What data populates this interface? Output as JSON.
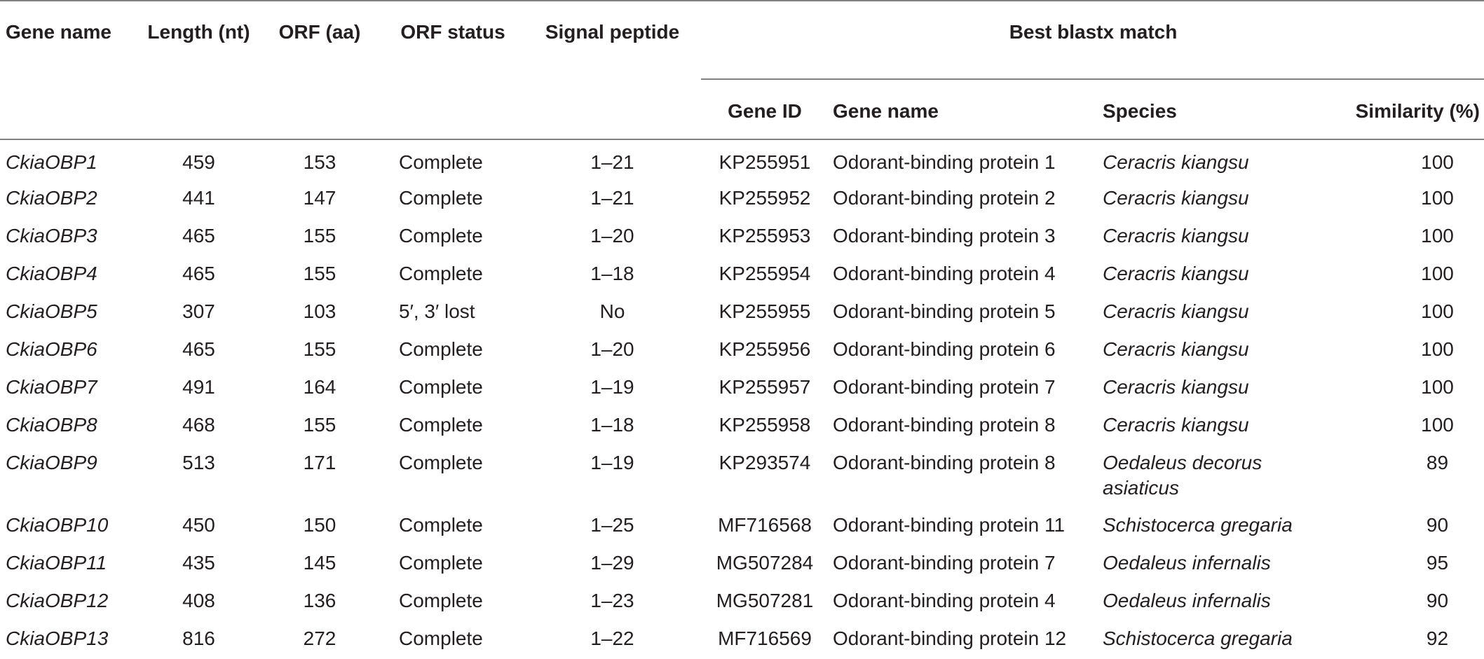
{
  "headers": {
    "gene_name": "Gene name",
    "length": "Length (nt)",
    "orf": "ORF (aa)",
    "orf_status": "ORF status",
    "signal_peptide": "Signal peptide",
    "best_blastx": "Best blastx match",
    "gene_id": "Gene ID",
    "match_gene_name": "Gene name",
    "species": "Species",
    "similarity": "Similarity (%)"
  },
  "rows": [
    {
      "gene": "CkiaOBP1",
      "length": "459",
      "orf": "153",
      "status": "Complete",
      "signal": "1–21",
      "id": "KP255951",
      "match": "Odorant-binding protein 1",
      "species": "Ceracris kiangsu",
      "similarity": "100"
    },
    {
      "gene": "CkiaOBP2",
      "length": "441",
      "orf": "147",
      "status": "Complete",
      "signal": "1–21",
      "id": "KP255952",
      "match": "Odorant-binding protein 2",
      "species": "Ceracris kiangsu",
      "similarity": "100"
    },
    {
      "gene": "CkiaOBP3",
      "length": "465",
      "orf": "155",
      "status": "Complete",
      "signal": "1–20",
      "id": "KP255953",
      "match": "Odorant-binding protein 3",
      "species": "Ceracris kiangsu",
      "similarity": "100"
    },
    {
      "gene": "CkiaOBP4",
      "length": "465",
      "orf": "155",
      "status": "Complete",
      "signal": "1–18",
      "id": "KP255954",
      "match": "Odorant-binding protein 4",
      "species": "Ceracris kiangsu",
      "similarity": "100"
    },
    {
      "gene": "CkiaOBP5",
      "length": "307",
      "orf": "103",
      "status": "5′, 3′ lost",
      "signal": "No",
      "id": "KP255955",
      "match": "Odorant-binding protein 5",
      "species": "Ceracris kiangsu",
      "similarity": "100"
    },
    {
      "gene": "CkiaOBP6",
      "length": "465",
      "orf": "155",
      "status": "Complete",
      "signal": "1–20",
      "id": "KP255956",
      "match": "Odorant-binding protein 6",
      "species": "Ceracris kiangsu",
      "similarity": "100"
    },
    {
      "gene": "CkiaOBP7",
      "length": "491",
      "orf": "164",
      "status": "Complete",
      "signal": "1–19",
      "id": "KP255957",
      "match": "Odorant-binding protein 7",
      "species": "Ceracris kiangsu",
      "similarity": "100"
    },
    {
      "gene": "CkiaOBP8",
      "length": "468",
      "orf": "155",
      "status": "Complete",
      "signal": "1–18",
      "id": "KP255958",
      "match": "Odorant-binding protein 8",
      "species": "Ceracris kiangsu",
      "similarity": "100"
    },
    {
      "gene": "CkiaOBP9",
      "length": "513",
      "orf": "171",
      "status": "Complete",
      "signal": "1–19",
      "id": "KP293574",
      "match": "Odorant-binding protein 8",
      "species": "Oedaleus decorus asiaticus",
      "similarity": "89"
    },
    {
      "gene": "CkiaOBP10",
      "length": "450",
      "orf": "150",
      "status": "Complete",
      "signal": "1–25",
      "id": "MF716568",
      "match": "Odorant-binding protein 11",
      "species": "Schistocerca gregaria",
      "similarity": "90"
    },
    {
      "gene": "CkiaOBP11",
      "length": "435",
      "orf": "145",
      "status": "Complete",
      "signal": "1–29",
      "id": "MG507284",
      "match": "Odorant-binding protein 7",
      "species": "Oedaleus infernalis",
      "similarity": "95"
    },
    {
      "gene": "CkiaOBP12",
      "length": "408",
      "orf": "136",
      "status": "Complete",
      "signal": "1–23",
      "id": "MG507281",
      "match": "Odorant-binding protein 4",
      "species": "Oedaleus infernalis",
      "similarity": "90"
    },
    {
      "gene": "CkiaOBP13",
      "length": "816",
      "orf": "272",
      "status": "Complete",
      "signal": "1–22",
      "id": "MF716569",
      "match": "Odorant-binding protein 12",
      "species": "Schistocerca gregaria",
      "similarity": "92"
    }
  ]
}
